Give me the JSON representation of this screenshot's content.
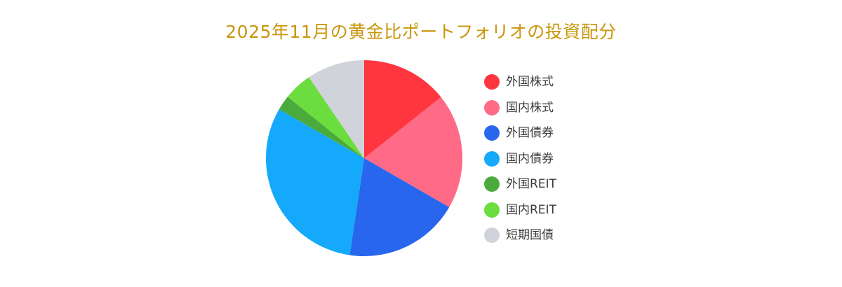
{
  "chart_data": {
    "type": "pie",
    "title": "2025年11月の黄金比ポートフォリオの投資配分",
    "categories": [
      "外国株式",
      "国内株式",
      "外国債券",
      "国内債券",
      "外国REIT",
      "国内REIT",
      "短期国債"
    ],
    "values": [
      14.6,
      19.4,
      19.4,
      31.6,
      2.5,
      4.8,
      9.7
    ],
    "colors": [
      "#ff363f",
      "#ff6b87",
      "#2966ee",
      "#14a9fa",
      "#4aaa3b",
      "#6bdd3f",
      "#d1d3da"
    ],
    "start_angle": "top",
    "direction": "clockwise",
    "legend_position": "right"
  }
}
